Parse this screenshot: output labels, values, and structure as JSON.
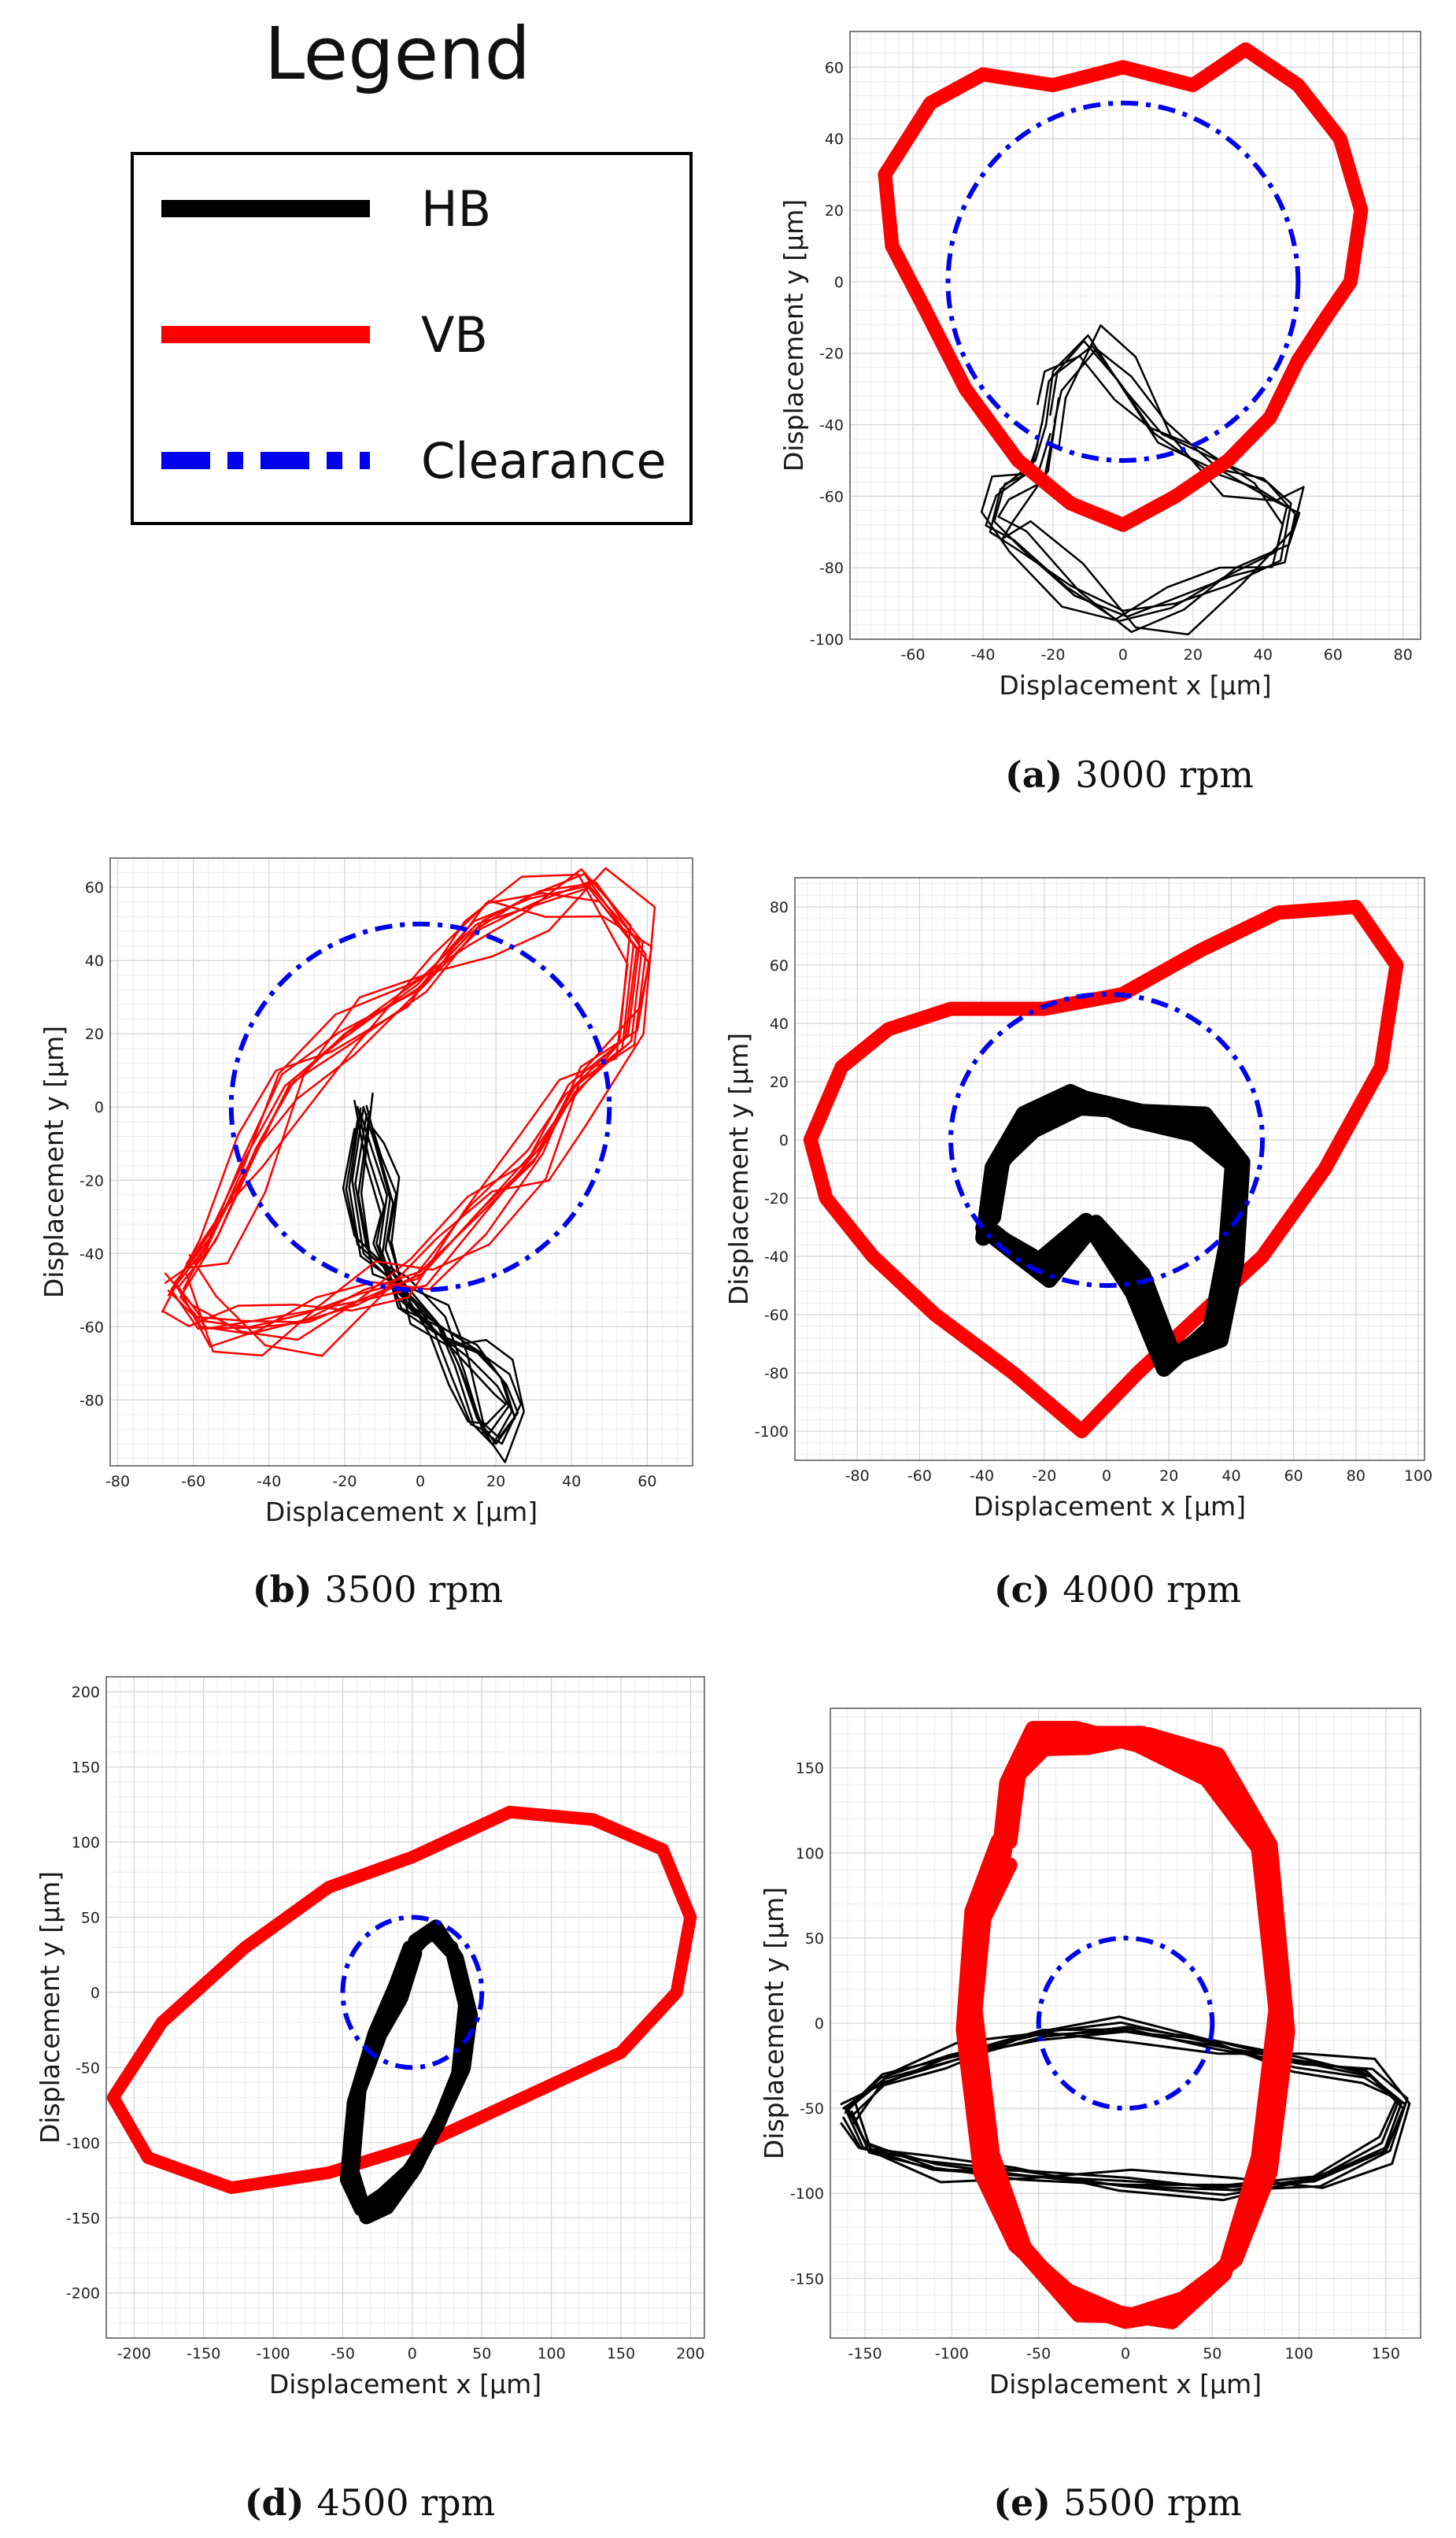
{
  "legend": {
    "title": "Legend",
    "entries": [
      {
        "label": "HB",
        "color": "#000000",
        "style": "solid"
      },
      {
        "label": "VB",
        "color": "#ff0000",
        "style": "solid"
      },
      {
        "label": "Clearance",
        "color": "#0000ee",
        "style": "dash-dot"
      }
    ]
  },
  "chart_data": [
    {
      "type": "line",
      "panel": "a",
      "caption_label": "(a)",
      "caption_text": "3000 rpm",
      "xlabel": "Displacement x [μm]",
      "ylabel": "Displacement y [μm]",
      "xlim": [
        -78,
        85
      ],
      "ylim": [
        -100,
        70
      ],
      "xticks": [
        -60,
        -40,
        -20,
        0,
        20,
        40,
        60,
        80
      ],
      "yticks": [
        -100,
        -80,
        -60,
        -40,
        -20,
        0,
        20,
        40,
        60
      ],
      "grid": true,
      "clearance_radius": 50,
      "series": [
        {
          "name": "HB",
          "color": "#000000",
          "width": 2.5,
          "band": [
            -3,
            0,
            3,
            6,
            9,
            -6
          ],
          "x": [
            -22,
            -20,
            -10,
            0,
            10,
            25,
            40,
            48,
            45,
            30,
            15,
            0,
            -15,
            -30,
            -38,
            -35,
            -25,
            -22
          ],
          "y": [
            -40,
            -25,
            -15,
            -30,
            -45,
            -52,
            -55,
            -62,
            -78,
            -85,
            -90,
            -92,
            -85,
            -75,
            -70,
            -58,
            -50,
            -40
          ]
        },
        {
          "name": "VB",
          "color": "#ff0000",
          "width": 18,
          "band": [
            0
          ],
          "x": [
            -68,
            -55,
            -40,
            -20,
            0,
            20,
            35,
            50,
            62,
            68,
            65,
            58,
            50,
            42,
            30,
            15,
            0,
            -15,
            -30,
            -45,
            -58,
            -66,
            -68
          ],
          "y": [
            30,
            50,
            58,
            55,
            60,
            55,
            65,
            55,
            40,
            20,
            0,
            -10,
            -22,
            -38,
            -50,
            -60,
            -68,
            -62,
            -50,
            -30,
            -5,
            10,
            30
          ]
        }
      ]
    },
    {
      "type": "line",
      "panel": "b",
      "caption_label": "(b)",
      "caption_text": "3500 rpm",
      "xlabel": "Displacement x [μm]",
      "ylabel": "Displacement y [μm]",
      "xlim": [
        -82,
        72
      ],
      "ylim": [
        -98,
        68
      ],
      "xticks": [
        -80,
        -60,
        -40,
        -20,
        0,
        20,
        40,
        60
      ],
      "yticks": [
        -80,
        -60,
        -40,
        -20,
        0,
        20,
        40,
        60
      ],
      "grid": true,
      "clearance_radius": 50,
      "series": [
        {
          "name": "HB",
          "color": "#000000",
          "width": 2.5,
          "band": [
            -4,
            -2,
            0,
            2,
            4,
            6,
            -6
          ],
          "x": [
            -15,
            -12,
            -8,
            -10,
            -5,
            5,
            15,
            22,
            25,
            20,
            15,
            10,
            5,
            -5,
            -15,
            -18,
            -15
          ],
          "y": [
            0,
            -10,
            -25,
            -40,
            -55,
            -60,
            -65,
            -75,
            -85,
            -92,
            -85,
            -70,
            -60,
            -50,
            -40,
            -20,
            0
          ]
        },
        {
          "name": "VB",
          "color": "#ff0000",
          "width": 2.5,
          "band": [
            -6,
            -4,
            -2,
            0,
            2,
            4,
            6,
            8,
            -8,
            10
          ],
          "x": [
            -65,
            -55,
            -45,
            -35,
            -20,
            0,
            15,
            30,
            45,
            58,
            55,
            40,
            30,
            15,
            0,
            -15,
            -30,
            -45,
            -58,
            -65
          ],
          "y": [
            -48,
            -35,
            -15,
            5,
            20,
            35,
            50,
            55,
            60,
            45,
            20,
            5,
            -15,
            -30,
            -45,
            -50,
            -58,
            -62,
            -60,
            -48
          ]
        }
      ]
    },
    {
      "type": "line",
      "panel": "c",
      "caption_label": "(c)",
      "caption_text": "4000 rpm",
      "xlabel": "Displacement x [μm]",
      "ylabel": "Displacement y [μm]",
      "xlim": [
        -100,
        102
      ],
      "ylim": [
        -110,
        90
      ],
      "xticks": [
        -80,
        -60,
        -40,
        -20,
        0,
        20,
        40,
        60,
        80,
        100
      ],
      "yticks": [
        -100,
        -80,
        -60,
        -40,
        -20,
        0,
        20,
        40,
        60,
        80
      ],
      "grid": true,
      "clearance_radius": 50,
      "series": [
        {
          "name": "HB",
          "color": "#000000",
          "width": 20,
          "band": [
            0,
            4,
            -4
          ],
          "x": [
            -38,
            -35,
            -25,
            -10,
            10,
            30,
            42,
            40,
            35,
            20,
            10,
            -5,
            -20,
            -38
          ],
          "y": [
            -30,
            -10,
            5,
            15,
            10,
            5,
            -10,
            -40,
            -65,
            -75,
            -50,
            -30,
            -45,
            -30
          ]
        },
        {
          "name": "VB",
          "color": "#ff0000",
          "width": 18,
          "band": [
            0
          ],
          "x": [
            -95,
            -85,
            -70,
            -50,
            -20,
            5,
            30,
            55,
            80,
            93,
            88,
            70,
            50,
            30,
            10,
            -8,
            -30,
            -55,
            -75,
            -90,
            -95
          ],
          "y": [
            0,
            25,
            38,
            45,
            45,
            50,
            65,
            78,
            80,
            60,
            25,
            -10,
            -40,
            -60,
            -80,
            -100,
            -80,
            -60,
            -40,
            -20,
            0
          ]
        }
      ]
    },
    {
      "type": "line",
      "panel": "d",
      "caption_label": "(d)",
      "caption_text": "4500 rpm",
      "xlabel": "Displacement x [μm]",
      "ylabel": "Displacement y [μm]",
      "xlim": [
        -220,
        210
      ],
      "ylim": [
        -230,
        210
      ],
      "xticks": [
        -200,
        -150,
        -100,
        -50,
        0,
        50,
        100,
        150,
        200
      ],
      "yticks": [
        -200,
        -150,
        -100,
        -50,
        0,
        50,
        100,
        150,
        200
      ],
      "grid": true,
      "clearance_radius": 50,
      "series": [
        {
          "name": "HB",
          "color": "#000000",
          "width": 18,
          "band": [
            0,
            5,
            -5
          ],
          "x": [
            0,
            15,
            30,
            40,
            35,
            20,
            0,
            -20,
            -35,
            -45,
            -40,
            -25,
            -10,
            0
          ],
          "y": [
            30,
            40,
            25,
            -10,
            -50,
            -85,
            -120,
            -140,
            -145,
            -120,
            -70,
            -30,
            0,
            30
          ]
        },
        {
          "name": "VB",
          "color": "#ff0000",
          "width": 16,
          "band": [
            0
          ],
          "x": [
            -215,
            -180,
            -120,
            -60,
            0,
            70,
            130,
            180,
            200,
            190,
            150,
            80,
            10,
            -60,
            -130,
            -190,
            -215
          ],
          "y": [
            -70,
            -20,
            30,
            70,
            90,
            120,
            115,
            95,
            50,
            0,
            -40,
            -70,
            -100,
            -120,
            -130,
            -110,
            -70
          ]
        }
      ]
    },
    {
      "type": "line",
      "panel": "e",
      "caption_label": "(e)",
      "caption_text": "5500 rpm",
      "xlabel": "Displacement x [μm]",
      "ylabel": "Displacement y [μm]",
      "xlim": [
        -170,
        170
      ],
      "ylim": [
        -185,
        185
      ],
      "xticks": [
        -150,
        -100,
        -50,
        0,
        50,
        100,
        150
      ],
      "yticks": [
        -150,
        -100,
        -50,
        0,
        50,
        100,
        150
      ],
      "grid": true,
      "clearance_radius": 50,
      "series": [
        {
          "name": "HB",
          "color": "#000000",
          "width": 3,
          "band": [
            -6,
            -3,
            0,
            3,
            6,
            9,
            -9
          ],
          "x": [
            -160,
            -140,
            -100,
            -50,
            0,
            50,
            100,
            140,
            160,
            150,
            110,
            60,
            0,
            -60,
            -110,
            -150,
            -160
          ],
          "y": [
            -50,
            -30,
            -20,
            -10,
            -5,
            -10,
            -20,
            -30,
            -50,
            -75,
            -90,
            -95,
            -95,
            -92,
            -85,
            -70,
            -50
          ]
        },
        {
          "name": "VB",
          "color": "#ff0000",
          "width": 20,
          "band": [
            0,
            8,
            -8
          ],
          "x": [
            -70,
            -65,
            -50,
            -25,
            10,
            50,
            80,
            90,
            80,
            60,
            30,
            0,
            -30,
            -60,
            -80,
            -90,
            -85,
            -70
          ],
          "y": [
            100,
            140,
            165,
            170,
            170,
            150,
            100,
            0,
            -80,
            -140,
            -170,
            -175,
            -165,
            -130,
            -80,
            0,
            60,
            100
          ]
        }
      ]
    }
  ]
}
